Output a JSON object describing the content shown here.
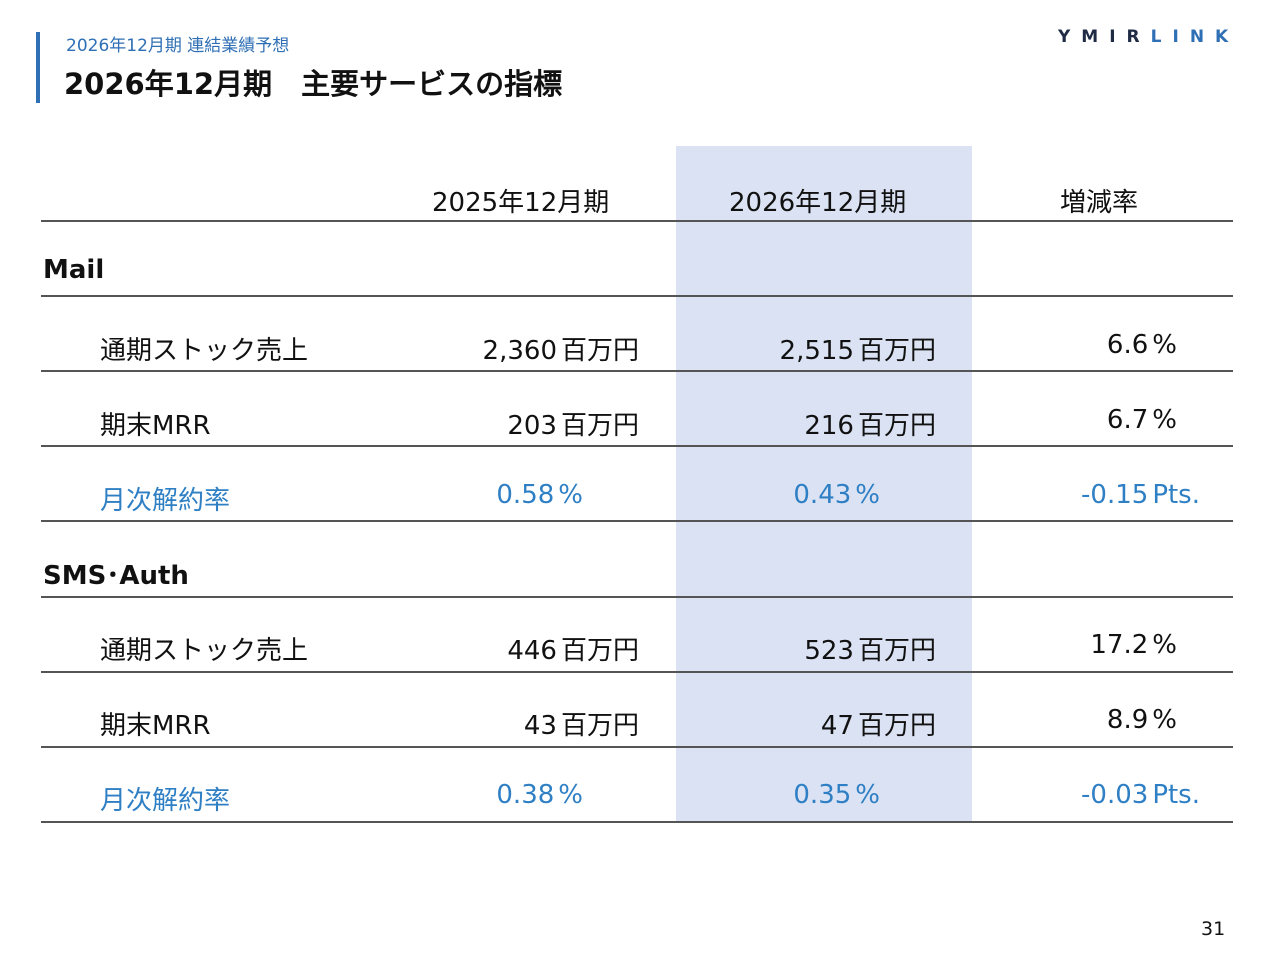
{
  "header": {
    "subtitle": "2026年12月期 連結業績予想",
    "title": "2026年12月期　主要サービスの指標",
    "logo_part1": "YMIR",
    "logo_part2": "LINK"
  },
  "table": {
    "columns": [
      "2025年12月期",
      "2026年12月期",
      "増減率"
    ],
    "sections": [
      {
        "name": "Mail",
        "rows": [
          {
            "label": "通期ストック売上",
            "v2025": "2,360",
            "u2025": "百万円",
            "v2026": "2,515",
            "u2026": "百万円",
            "change": "6.6",
            "change_unit": "%"
          },
          {
            "label": "期末MRR",
            "v2025": "203",
            "u2025": "百万円",
            "v2026": "216",
            "u2026": "百万円",
            "change": "6.7",
            "change_unit": "%"
          },
          {
            "label": "月次解約率",
            "v2025": "0.58",
            "u2025": "%",
            "v2026": "0.43",
            "u2026": "%",
            "change": "-0.15",
            "change_unit": "Pts."
          }
        ]
      },
      {
        "name": "SMS･Auth",
        "rows": [
          {
            "label": "通期ストック売上",
            "v2025": "446",
            "u2025": "百万円",
            "v2026": "523",
            "u2026": "百万円",
            "change": "17.2",
            "change_unit": "%"
          },
          {
            "label": "期末MRR",
            "v2025": "43",
            "u2025": "百万円",
            "v2026": "47",
            "u2026": "百万円",
            "change": "8.9",
            "change_unit": "%"
          },
          {
            "label": "月次解約率",
            "v2025": "0.38",
            "u2025": "%",
            "v2026": "0.35",
            "u2026": "%",
            "change": "-0.03",
            "change_unit": "Pts."
          }
        ]
      }
    ]
  },
  "colors": {
    "accent": "#2f6fb5",
    "churn_text": "#2f7fc4",
    "highlight": "#dae2f3"
  },
  "footer": {
    "page_number": "31"
  }
}
